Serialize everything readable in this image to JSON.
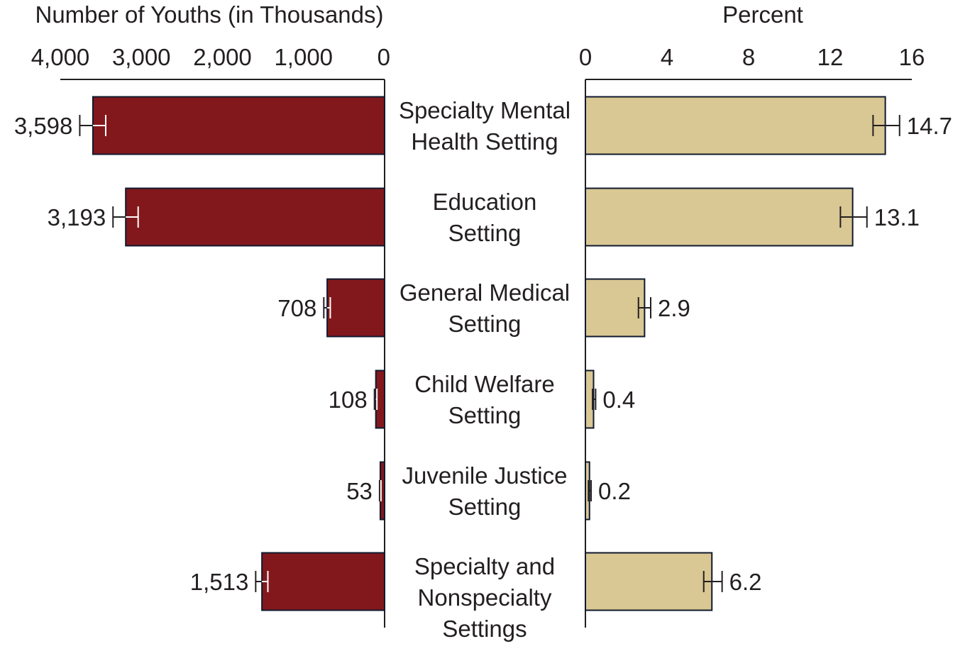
{
  "colors": {
    "left_bar": "#83181c",
    "right_bar": "#d9c794",
    "bar_border": "#0f1a2e",
    "axis": "#231f20",
    "left_error": "#ffffff",
    "right_error": "#231f20"
  },
  "chart_data": [
    {
      "type": "bar",
      "orientation": "horizontal",
      "direction": "right-to-left",
      "title": "Number of Youths (in Thousands)",
      "xlim": [
        0,
        4000
      ],
      "ticks": [
        4000,
        3000,
        2000,
        1000,
        0
      ],
      "tick_labels": [
        "4,000",
        "3,000",
        "2,000",
        "1,000",
        "0"
      ],
      "categories": [
        "Specialty Mental Health Setting",
        "Education Setting",
        "General Medical Setting",
        "Child Welfare Setting",
        "Juvenile Justice Setting",
        "Specialty and Nonspecialty Settings"
      ],
      "values": [
        3598,
        3193,
        708,
        108,
        53,
        1513
      ],
      "value_labels": [
        "3,598",
        "3,193",
        "708",
        "108",
        "53",
        "1,513"
      ],
      "error_low": [
        3440,
        3040,
        670,
        95,
        45,
        1440
      ],
      "error_high": [
        3760,
        3350,
        750,
        125,
        62,
        1590
      ]
    },
    {
      "type": "bar",
      "orientation": "horizontal",
      "direction": "left-to-right",
      "title": "Percent",
      "xlim": [
        0,
        16
      ],
      "ticks": [
        0,
        4,
        8,
        12,
        16
      ],
      "tick_labels": [
        "0",
        "4",
        "8",
        "12",
        "16"
      ],
      "categories": [
        "Specialty Mental Health Setting",
        "Education Setting",
        "General Medical Setting",
        "Child Welfare Setting",
        "Juvenile Justice Setting",
        "Specialty and Nonspecialty Settings"
      ],
      "values": [
        14.7,
        13.1,
        2.9,
        0.4,
        0.2,
        6.2
      ],
      "value_labels": [
        "14.7",
        "13.1",
        "2.9",
        "0.4",
        "0.2",
        "6.2"
      ],
      "error_low": [
        14.1,
        12.5,
        2.6,
        0.35,
        0.15,
        5.8
      ],
      "error_high": [
        15.4,
        13.8,
        3.2,
        0.5,
        0.28,
        6.7
      ]
    }
  ],
  "category_lines": [
    [
      "Specialty Mental",
      "Health Setting"
    ],
    [
      "Education",
      "Setting"
    ],
    [
      "General Medical",
      "Setting"
    ],
    [
      "Child Welfare",
      "Setting"
    ],
    [
      "Juvenile Justice",
      "Setting"
    ],
    [
      "Specialty and",
      "Nonspecialty",
      "Settings"
    ]
  ]
}
